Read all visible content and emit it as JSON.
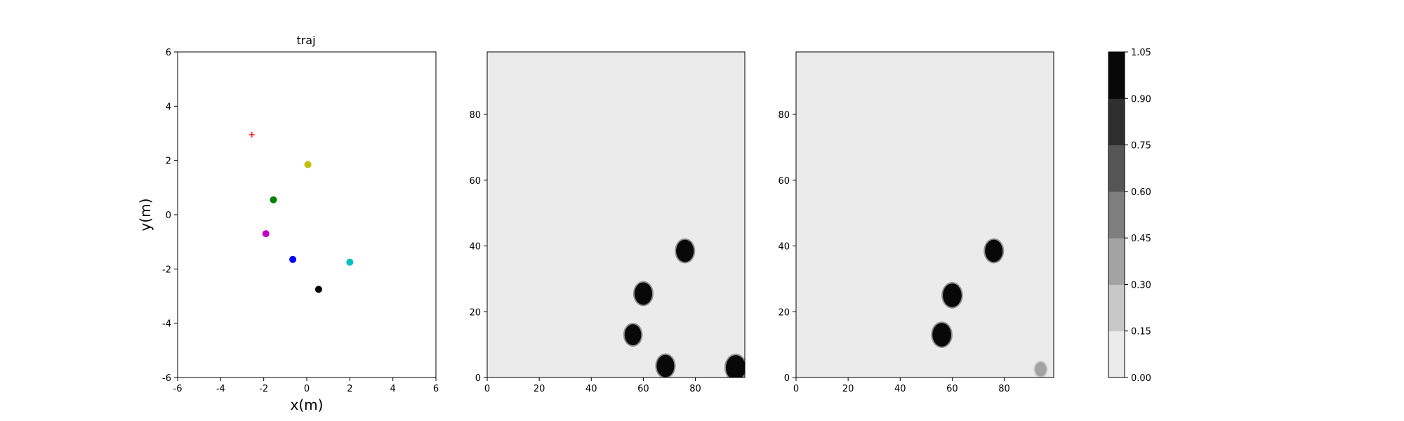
{
  "chart_data": [
    {
      "type": "scatter",
      "title": "traj",
      "xlabel": "x(m)",
      "ylabel": "y(m)",
      "xlim": [
        -6,
        6
      ],
      "ylim": [
        -6,
        6
      ],
      "xticks": [
        -6,
        -4,
        -2,
        0,
        2,
        4,
        6
      ],
      "yticks": [
        -6,
        -4,
        -2,
        0,
        2,
        4,
        6
      ],
      "grid": false,
      "points": [
        {
          "x": -2.55,
          "y": 2.95,
          "color": "#ff0000",
          "marker": "plus"
        },
        {
          "x": 0.05,
          "y": 1.85,
          "color": "#bfbf00",
          "marker": "circle"
        },
        {
          "x": -1.55,
          "y": 0.55,
          "color": "#008000",
          "marker": "circle"
        },
        {
          "x": -1.9,
          "y": -0.7,
          "color": "#bf00bf",
          "marker": "circle"
        },
        {
          "x": -0.65,
          "y": -1.65,
          "color": "#0000ff",
          "marker": "circle"
        },
        {
          "x": 2.0,
          "y": -1.75,
          "color": "#00bfbf",
          "marker": "circle"
        },
        {
          "x": 0.55,
          "y": -2.75,
          "color": "#000000",
          "marker": "circle"
        }
      ]
    },
    {
      "type": "heatmap",
      "xlim": [
        0,
        99
      ],
      "ylim": [
        0,
        99
      ],
      "xticks": [
        0,
        20,
        40,
        60,
        80
      ],
      "yticks": [
        0,
        20,
        40,
        60,
        80
      ],
      "background_level": 0.0,
      "blobs": [
        {
          "x": 76,
          "y": 38.5,
          "r": 3.4,
          "level": 1.0
        },
        {
          "x": 60,
          "y": 25.5,
          "r": 3.4,
          "level": 1.0
        },
        {
          "x": 56,
          "y": 13,
          "r": 3.2,
          "level": 1.0
        },
        {
          "x": 68.5,
          "y": 3.5,
          "r": 3.4,
          "level": 1.0
        },
        {
          "x": 95.5,
          "y": 3,
          "r": 3.8,
          "level": 1.0
        }
      ]
    },
    {
      "type": "heatmap",
      "xlim": [
        0,
        99
      ],
      "ylim": [
        0,
        99
      ],
      "xticks": [
        0,
        20,
        40,
        60,
        80
      ],
      "yticks": [
        0,
        20,
        40,
        60,
        80
      ],
      "background_level": 0.0,
      "blobs": [
        {
          "x": 76,
          "y": 38.5,
          "r": 3.4,
          "level": 1.0
        },
        {
          "x": 60,
          "y": 25,
          "r": 3.6,
          "level": 1.0
        },
        {
          "x": 56,
          "y": 13,
          "r": 3.6,
          "level": 1.0
        },
        {
          "x": 94,
          "y": 2.5,
          "r": 2.2,
          "level": 0.4
        }
      ]
    }
  ],
  "colorbar": {
    "ticks": [
      "0.00",
      "0.15",
      "0.30",
      "0.45",
      "0.60",
      "0.75",
      "0.90",
      "1.05"
    ],
    "colors": [
      "#ebebeb",
      "#c8c8c8",
      "#a3a3a3",
      "#7e7e7e",
      "#565656",
      "#2f2f2f",
      "#080808"
    ]
  }
}
